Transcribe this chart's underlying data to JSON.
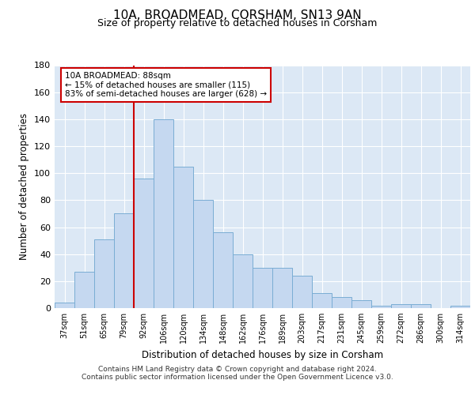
{
  "title": "10A, BROADMEAD, CORSHAM, SN13 9AN",
  "subtitle": "Size of property relative to detached houses in Corsham",
  "xlabel": "Distribution of detached houses by size in Corsham",
  "ylabel": "Number of detached properties",
  "bar_color": "#c5d8f0",
  "bar_edge_color": "#7aadd4",
  "background_color": "#dce8f5",
  "categories": [
    "37sqm",
    "51sqm",
    "65sqm",
    "79sqm",
    "92sqm",
    "106sqm",
    "120sqm",
    "134sqm",
    "148sqm",
    "162sqm",
    "176sqm",
    "189sqm",
    "203sqm",
    "217sqm",
    "231sqm",
    "245sqm",
    "259sqm",
    "272sqm",
    "286sqm",
    "300sqm",
    "314sqm"
  ],
  "values": [
    4,
    27,
    51,
    70,
    96,
    140,
    105,
    80,
    56,
    40,
    30,
    30,
    24,
    11,
    8,
    6,
    2,
    3,
    3,
    0,
    2
  ],
  "vline_position": 3.5,
  "vline_color": "#cc0000",
  "annotation_text": "10A BROADMEAD: 88sqm\n← 15% of detached houses are smaller (115)\n83% of semi-detached houses are larger (628) →",
  "annotation_box_color": "#ffffff",
  "annotation_box_edge_color": "#cc0000",
  "ylim": [
    0,
    180
  ],
  "yticks": [
    0,
    20,
    40,
    60,
    80,
    100,
    120,
    140,
    160,
    180
  ],
  "footer_line1": "Contains HM Land Registry data © Crown copyright and database right 2024.",
  "footer_line2": "Contains public sector information licensed under the Open Government Licence v3.0.",
  "grid_color": "#ffffff",
  "fig_bg_color": "#ffffff"
}
